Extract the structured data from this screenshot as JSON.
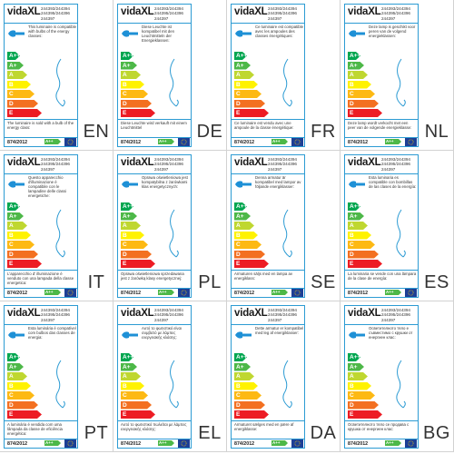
{
  "common": {
    "brand": "vidaXL",
    "codes": [
      "244393/244394",
      "244395/244396",
      "244397"
    ],
    "regulation": "874/2012",
    "classes": [
      "A++",
      "A+",
      "A",
      "B",
      "C",
      "D",
      "E"
    ],
    "class_colors": [
      "#00a650",
      "#4db848",
      "#bfd730",
      "#fff200",
      "#fdb913",
      "#f37021",
      "#ed1c24"
    ],
    "badge": "A++"
  },
  "labels": [
    {
      "lang": "EN",
      "top_text": "This luminaire is compatible with bulbs of the energy classes:",
      "bottom_text": "The luminaire is sold with a bulb of the energy class:"
    },
    {
      "lang": "DE",
      "top_text": "Diese Leuchte ist kompatibel mit den Leuchtmitteln der Energieklassen:",
      "bottom_text": "Diese Leuchte wird verkauft mit einem Leuchtmittel"
    },
    {
      "lang": "FR",
      "top_text": "Ce luminaire est compatible avec les ampoules des classes énergétiques:",
      "bottom_text": "Ce luminaire est vendu avec une ampoule de la classe énergétique:"
    },
    {
      "lang": "NL",
      "top_text": "Deze lamp is geschikt voor peren van de volgend energieklassen:",
      "bottom_text": "Deze lamp wordt verkocht met een peer van de volgende energieklasse:"
    },
    {
      "lang": "IT",
      "top_text": "Questo apparecchio d'illuminazione è compatibile con le lampadine delle classi energetiche:",
      "bottom_text": "L'apparecchio d' illuminazione è venduto con una lampada della classe energetica:"
    },
    {
      "lang": "PL",
      "top_text": "Oprawa oświetleniowa jest kompatybilna z żarówkami klas energetycznych:",
      "bottom_text": "Oprawa oświetleniowa sprzedawana jest z żarówką klasy energetycznej:"
    },
    {
      "lang": "SE",
      "top_text": "Denna armatur är kompatibel med lampor av följande energiklasser:",
      "bottom_text": "Armaturen säljs med en lampa av energiklass:"
    },
    {
      "lang": "ES",
      "top_text": "Esta luminaria es compatible con bombillas de las clases de la energía:",
      "bottom_text": "La luminaria se vende con una lámpara de la clase de energía:"
    },
    {
      "lang": "PT",
      "top_text": "Esta luminária é compatível com bulbos das classes de energia:",
      "bottom_text": "A luminária é vendida com uma lâmpada da classe de eficiência energética:"
    },
    {
      "lang": "EL",
      "top_text": "Αυτό το φωτιστικό είναι συμβατό με λάμπες ενεργειακής κλάσης:",
      "bottom_text": "Αυτό το φωτιστικό πωλείται με λάμπες ενεργειακής κλάσης:"
    },
    {
      "lang": "DA",
      "top_text": "Dette armatur er kompatibel med leg af energiklasser:",
      "bottom_text": "Armaturet sælges med en pære af energiklasse:"
    },
    {
      "lang": "BG",
      "top_text": "Осветителното тяло е съвместимо с крушки от енергиен клас:",
      "bottom_text": "Осветителното тяло се продава с крушка от енергиен клас:"
    }
  ]
}
